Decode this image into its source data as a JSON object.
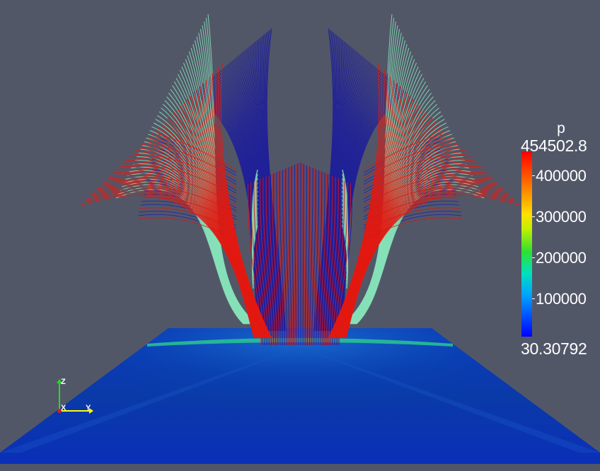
{
  "colorbar": {
    "title": "p",
    "max_label": "454502.8",
    "min_label": "30.30792",
    "ticks": [
      {
        "label": "400000",
        "value": 400000
      },
      {
        "label": "300000",
        "value": 300000
      },
      {
        "label": "200000",
        "value": 200000
      },
      {
        "label": "100000",
        "value": 100000
      }
    ],
    "range": [
      30.30792,
      454502.8
    ]
  },
  "orientation_axes": {
    "x_label": "X",
    "y_label": "Y",
    "z_label": "Z"
  },
  "colors": {
    "background": "#525768",
    "low": "#0000ff",
    "high": "#ff0000",
    "streamline_cyan": "#7fdcb4",
    "plane_blue": "#0a3fb0"
  }
}
